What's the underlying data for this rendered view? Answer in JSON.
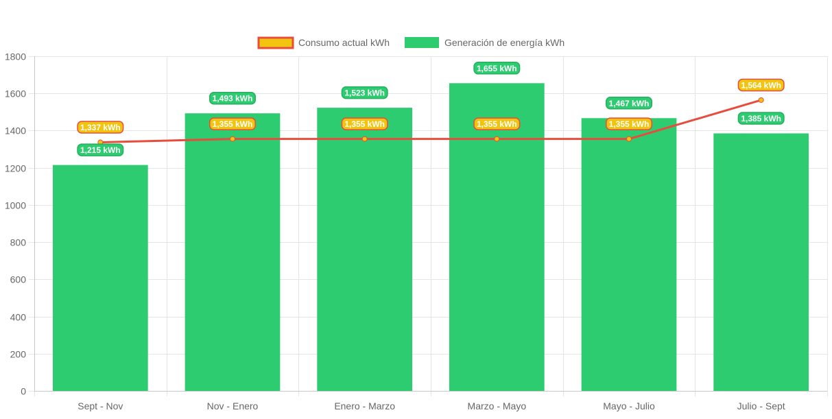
{
  "chart_data": {
    "type": "bar",
    "categories": [
      "Sept - Nov",
      "Nov - Enero",
      "Enero - Marzo",
      "Marzo - Mayo",
      "Mayo - Julio",
      "Julio - Sept"
    ],
    "series": [
      {
        "name": "Consumo actual kWh",
        "kind": "line",
        "values": [
          1337,
          1355,
          1355,
          1355,
          1355,
          1564
        ],
        "labels": [
          "1,337 kWh",
          "1,355 kWh",
          "1,355 kWh",
          "1,355 kWh",
          "1,355 kWh",
          "1,564 kWh"
        ],
        "line_color": "#e74c3c",
        "fill_color": "#f1c40f"
      },
      {
        "name": "Generación de energía kWh",
        "kind": "bar",
        "values": [
          1215,
          1493,
          1523,
          1655,
          1467,
          1385
        ],
        "labels": [
          "1,215 kWh",
          "1,493 kWh",
          "1,523 kWh",
          "1,655 kWh",
          "1,467 kWh",
          "1,385 kWh"
        ],
        "color": "#2ecc71"
      }
    ],
    "y_ticks": [
      "0",
      "200",
      "400",
      "600",
      "800",
      "1000",
      "1200",
      "1400",
      "1600",
      "1800"
    ],
    "ylim": [
      0,
      1800
    ],
    "grid": true,
    "legend_position": "top"
  }
}
